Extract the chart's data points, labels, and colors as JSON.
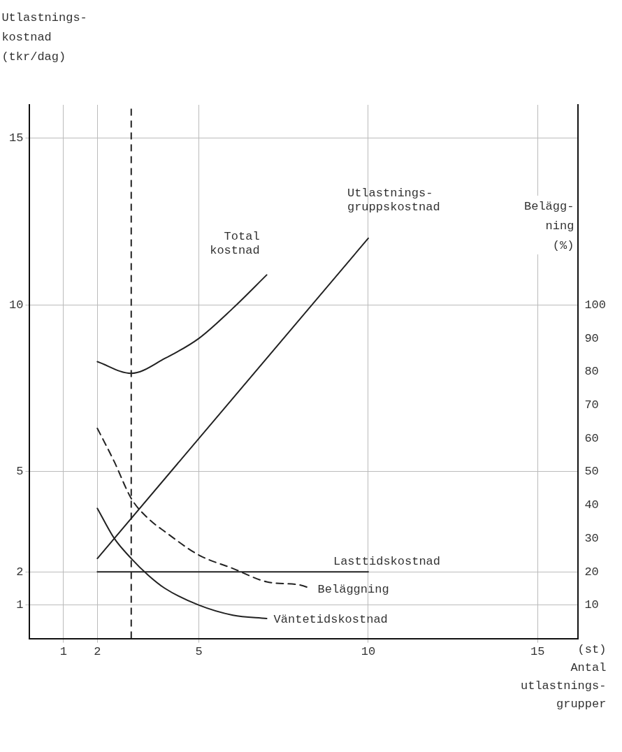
{
  "chart_data": {
    "type": "line",
    "xlabel": "(st)\nAntal\nutlastnings-\ngrupper",
    "ylabel": "Utlastnings-\nkostnad\n(tkr/dag)",
    "y2label": "Belägg-\nning\n(%)",
    "xlim": [
      0,
      16.2
    ],
    "xticks": [
      1,
      2,
      5,
      10,
      15
    ],
    "ylim": [
      0,
      16
    ],
    "yticks": [
      1,
      2,
      5,
      10,
      15
    ],
    "y2lim": [
      0,
      160
    ],
    "y2ticks": [
      10,
      20,
      30,
      40,
      50,
      60,
      70,
      80,
      90,
      100
    ],
    "grid": true,
    "legend": false,
    "marker": "none",
    "ref_lines": [
      {
        "axis": "x",
        "value": 3,
        "line_style": "dashed",
        "color": "#222222"
      }
    ],
    "series": [
      {
        "name": "Total\nkostnad",
        "color": "#222222",
        "x": [
          2,
          3,
          4,
          5,
          6,
          7
        ],
        "values": [
          8.3,
          7.95,
          8.4,
          9.0,
          9.9,
          10.9
        ]
      },
      {
        "name": "Utlastnings-\ngruppskostnad",
        "color": "#222222",
        "x": [
          2,
          10
        ],
        "values": [
          2.4,
          12
        ]
      },
      {
        "name": "Lasttidskostnad",
        "color": "#222222",
        "x": [
          2,
          10
        ],
        "values": [
          2,
          2
        ]
      },
      {
        "name": "Beläggning",
        "color": "#222222",
        "axis": "y2",
        "line_style": "dashed",
        "x": [
          2,
          2.5,
          3,
          3.5,
          4,
          5,
          6,
          7,
          8,
          8.3
        ],
        "values": [
          63,
          53,
          42,
          36,
          32,
          25,
          21,
          17,
          16,
          15
        ]
      },
      {
        "name": "Väntetidskostnad",
        "color": "#222222",
        "x": [
          2,
          2.5,
          3,
          3.5,
          4,
          5,
          6,
          7
        ],
        "values": [
          3.9,
          3.0,
          2.4,
          1.9,
          1.5,
          1.0,
          0.7,
          0.6
        ]
      }
    ]
  }
}
